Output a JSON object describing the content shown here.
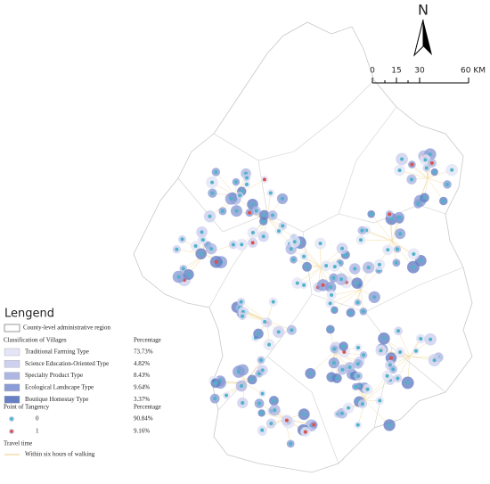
{
  "north": "N",
  "scale": {
    "ticks": [
      "0",
      "15",
      "30",
      "60 KM"
    ]
  },
  "legend": {
    "title": "Lengend",
    "boundary": "County-level administrative region",
    "classification": {
      "title": "Classification of Villages",
      "header": "Percentage",
      "items": [
        {
          "name": "Traditional Farming Type",
          "percent": "73.73%",
          "color": "#e4e5f6"
        },
        {
          "name": "Science Education-Oriented Type",
          "percent": "4.82%",
          "color": "#cdd0ef"
        },
        {
          "name": "Specialty Product Type",
          "percent": "8.43%",
          "color": "#aeb6e4"
        },
        {
          "name": "Ecological Landscape Type",
          "percent": "9.64%",
          "color": "#8b9cd6"
        },
        {
          "name": "Boutique Homestay Type",
          "percent": "3.37%",
          "color": "#6780c4"
        }
      ]
    },
    "tangency": {
      "title": "Point of Tangency",
      "header": "Percentage",
      "items": [
        {
          "name": "0",
          "percent": "90.84%",
          "color": "#4fb3c9"
        },
        {
          "name": "1",
          "percent": "9.16%",
          "color": "#d9534f"
        }
      ]
    },
    "travel": {
      "title": "Travel time",
      "item": "Within six hours of walking"
    }
  }
}
